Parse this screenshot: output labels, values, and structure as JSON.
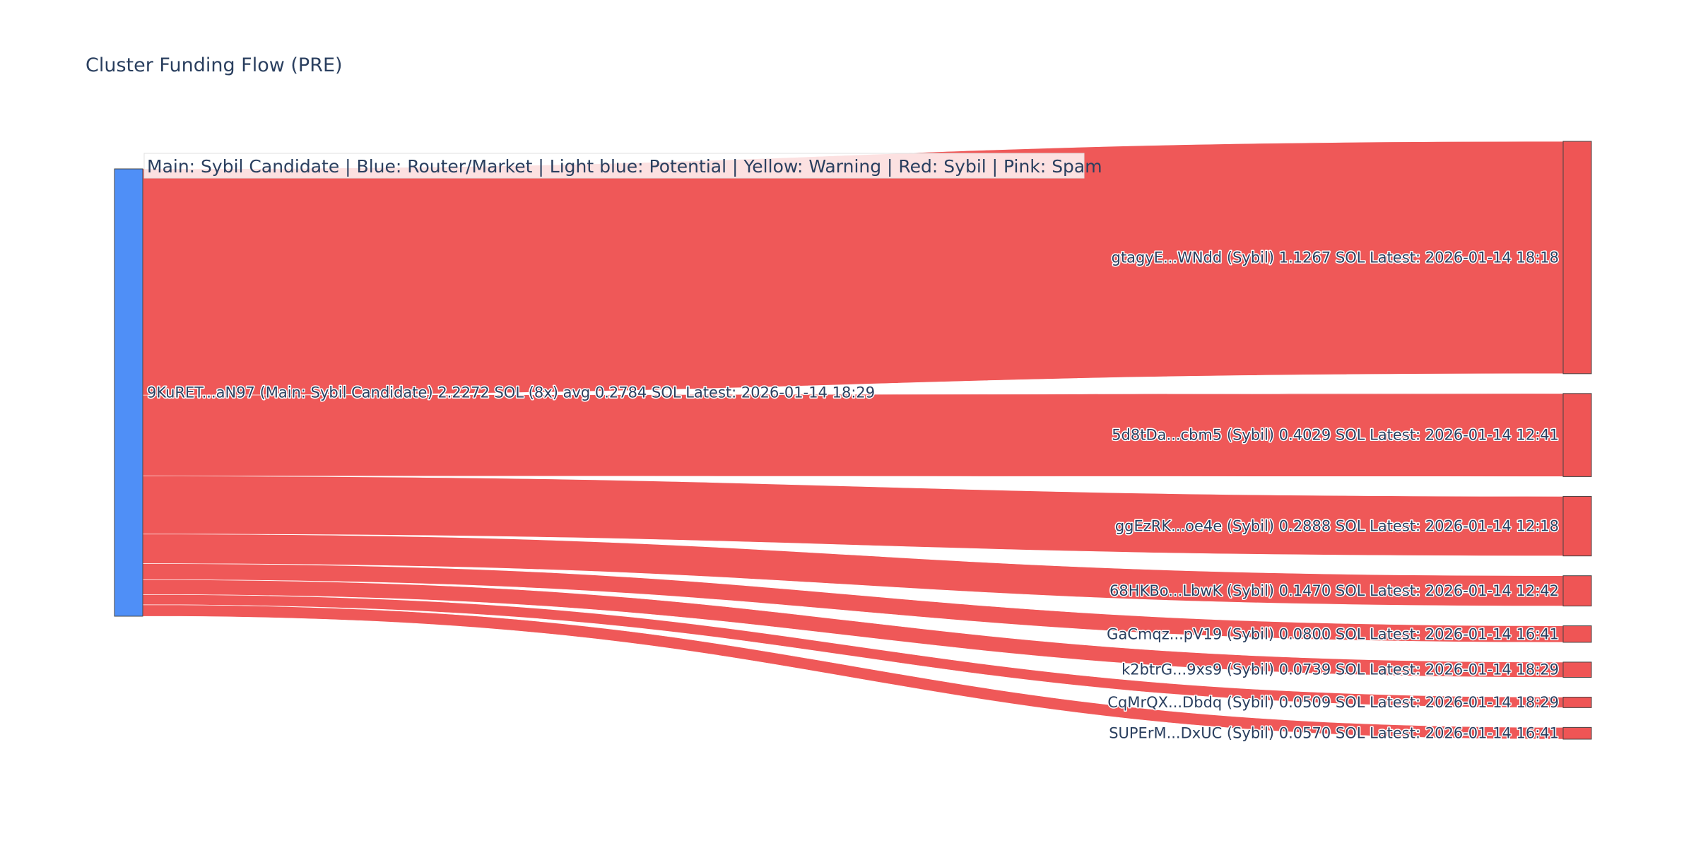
{
  "title": "Cluster Funding Flow (PRE)",
  "legend": "Main: Sybil Candidate  |  Blue: Router/Market | Light blue: Potential | Yellow: Warning | Red: Sybil | Pink: Spam",
  "colors": {
    "source_node": "#4f8ff7",
    "target_node": "#ef5555",
    "link": "#ef5555",
    "node_border": "#444444",
    "text": "#2a3f5f"
  },
  "chart_data": {
    "type": "sankey",
    "title": "Cluster Funding Flow (PRE)",
    "unit": "SOL",
    "source": {
      "label": "9KuRET...aN97 (Main: Sybil Candidate) 2.2272 SOL (8x) avg 0.2784 SOL Latest: 2026-01-14 18:29",
      "value": 2.2272
    },
    "targets": [
      {
        "label": "gtagyE...WNdd (Sybil) 1.1267 SOL Latest: 2026-01-14 18:18",
        "value": 1.1267
      },
      {
        "label": "5d8tDa...cbm5 (Sybil) 0.4029 SOL Latest: 2026-01-14 12:41",
        "value": 0.4029
      },
      {
        "label": "ggEzRK...oe4e (Sybil) 0.2888 SOL Latest: 2026-01-14 12:18",
        "value": 0.2888
      },
      {
        "label": "68HKBo...LbwK (Sybil) 0.1470 SOL Latest: 2026-01-14 12:42",
        "value": 0.147
      },
      {
        "label": "GaCmqz...pV19 (Sybil) 0.0800 SOL Latest: 2026-01-14 16:41",
        "value": 0.08
      },
      {
        "label": "k2btrG...9xs9 (Sybil) 0.0739 SOL Latest: 2026-01-14 18:29",
        "value": 0.0739
      },
      {
        "label": "CqMrQX...Dbdq (Sybil) 0.0509 SOL Latest: 2026-01-14 18:29",
        "value": 0.0509
      },
      {
        "label": "SUPErM...DxUC (Sybil) 0.0570 SOL Latest: 2026-01-14 16:41",
        "value": 0.057
      }
    ]
  }
}
